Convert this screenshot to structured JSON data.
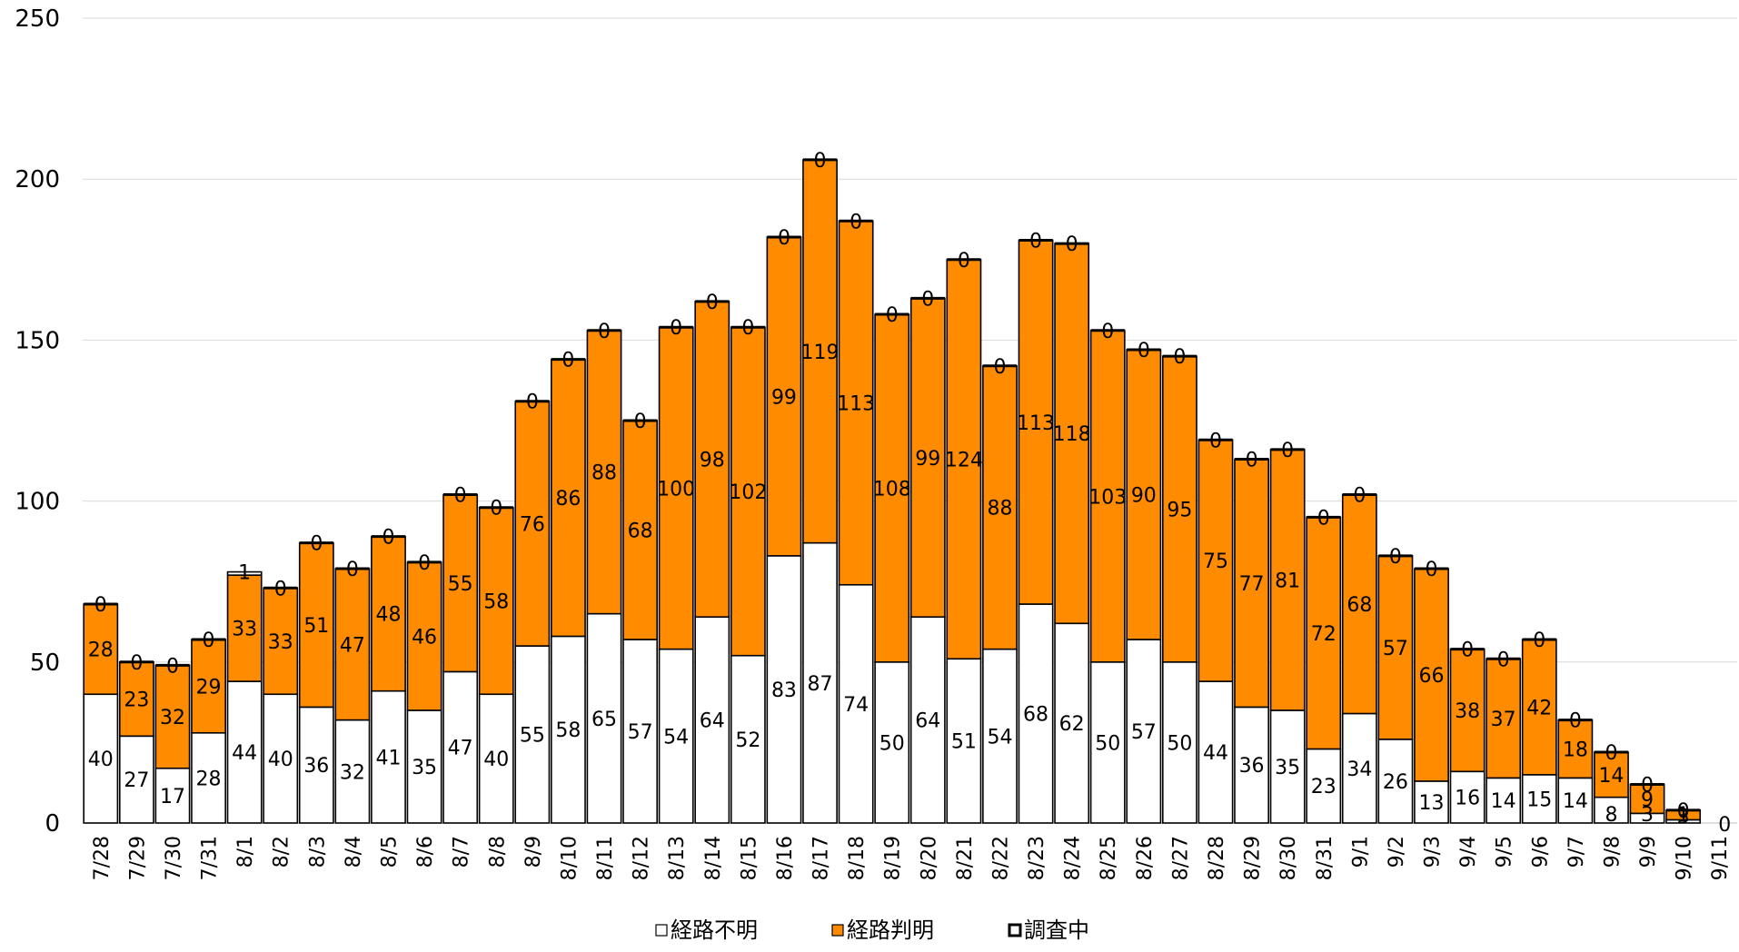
{
  "chart_data": {
    "type": "bar",
    "stacked": true,
    "title": "",
    "xlabel": "",
    "ylabel": "",
    "ylim": [
      0,
      250
    ],
    "yticks": [
      "0",
      "50",
      "100",
      "150",
      "200",
      "250"
    ],
    "grid": true,
    "legend_position": "bottom",
    "categories": [
      "7/28",
      "7/29",
      "7/30",
      "7/31",
      "8/1",
      "8/2",
      "8/3",
      "8/4",
      "8/5",
      "8/6",
      "8/7",
      "8/8",
      "8/9",
      "8/10",
      "8/11",
      "8/12",
      "8/13",
      "8/14",
      "8/15",
      "8/16",
      "8/17",
      "8/18",
      "8/19",
      "8/20",
      "8/21",
      "8/22",
      "8/23",
      "8/24",
      "8/25",
      "8/26",
      "8/27",
      "8/28",
      "8/29",
      "8/30",
      "8/31",
      "9/1",
      "9/2",
      "9/3",
      "9/4",
      "9/5",
      "9/6",
      "9/7",
      "9/8",
      "9/9",
      "9/10",
      "9/11"
    ],
    "series": [
      {
        "name": "経路不明",
        "color": "#ffffff",
        "values": [
          40,
          27,
          17,
          28,
          44,
          40,
          36,
          32,
          41,
          35,
          47,
          40,
          55,
          58,
          65,
          57,
          54,
          64,
          52,
          83,
          87,
          74,
          50,
          64,
          51,
          54,
          68,
          62,
          50,
          57,
          50,
          44,
          36,
          35,
          23,
          34,
          26,
          13,
          16,
          14,
          15,
          14,
          8,
          3,
          1,
          0
        ]
      },
      {
        "name": "経路判明",
        "color": "#ff8c00",
        "values": [
          28,
          23,
          32,
          29,
          33,
          33,
          51,
          47,
          48,
          46,
          55,
          58,
          76,
          86,
          88,
          68,
          100,
          98,
          102,
          99,
          119,
          113,
          108,
          99,
          124,
          88,
          113,
          118,
          103,
          90,
          95,
          75,
          77,
          81,
          72,
          68,
          57,
          66,
          38,
          37,
          42,
          18,
          14,
          9,
          3,
          0
        ]
      },
      {
        "name": "調査中",
        "color": "#000000",
        "values": [
          0,
          0,
          0,
          0,
          1,
          0,
          0,
          0,
          0,
          0,
          0,
          0,
          0,
          0,
          0,
          0,
          0,
          0,
          0,
          0,
          0,
          0,
          0,
          0,
          0,
          0,
          0,
          0,
          0,
          0,
          0,
          0,
          0,
          0,
          0,
          0,
          0,
          0,
          0,
          0,
          0,
          0,
          0,
          0,
          0,
          0
        ]
      }
    ]
  }
}
